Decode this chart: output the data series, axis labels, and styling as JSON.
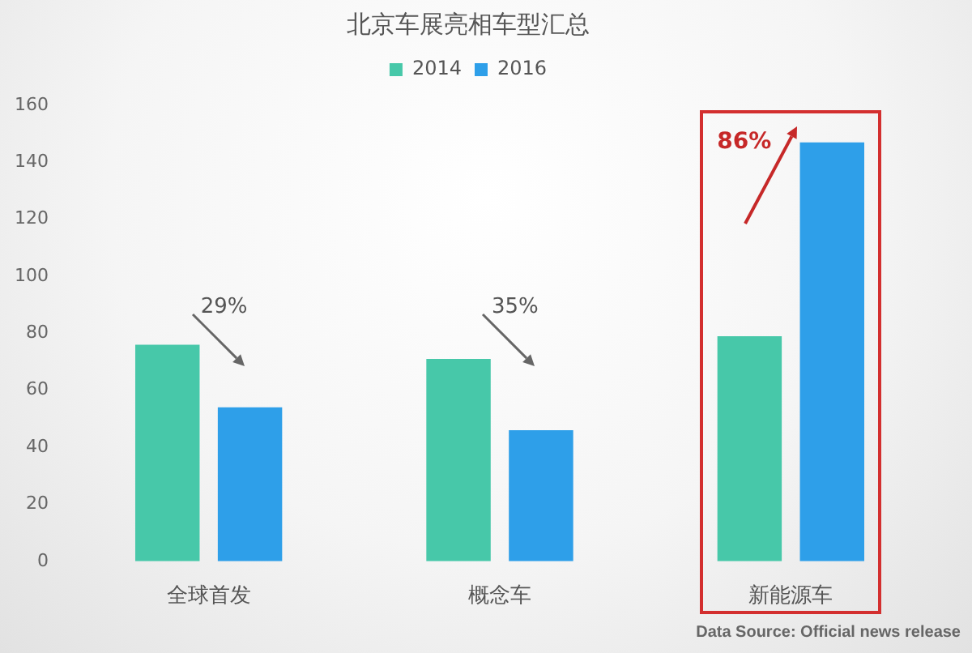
{
  "chart_data": {
    "type": "bar",
    "title": "北京车展亮相车型汇总",
    "categories": [
      "全球首发",
      "概念车",
      "新能源车"
    ],
    "series": [
      {
        "name": "2014",
        "color": "#47c8a9",
        "values": [
          76,
          71,
          79
        ]
      },
      {
        "name": "2016",
        "color": "#2e9fe9",
        "values": [
          54,
          46,
          147
        ]
      }
    ],
    "ylim": [
      0,
      160
    ],
    "yticks": [
      0,
      20,
      40,
      60,
      80,
      100,
      120,
      140,
      160
    ],
    "legend": "top",
    "annotations": [
      "29%",
      "35%",
      "86%",
      "Data Source: Official news release"
    ]
  }
}
